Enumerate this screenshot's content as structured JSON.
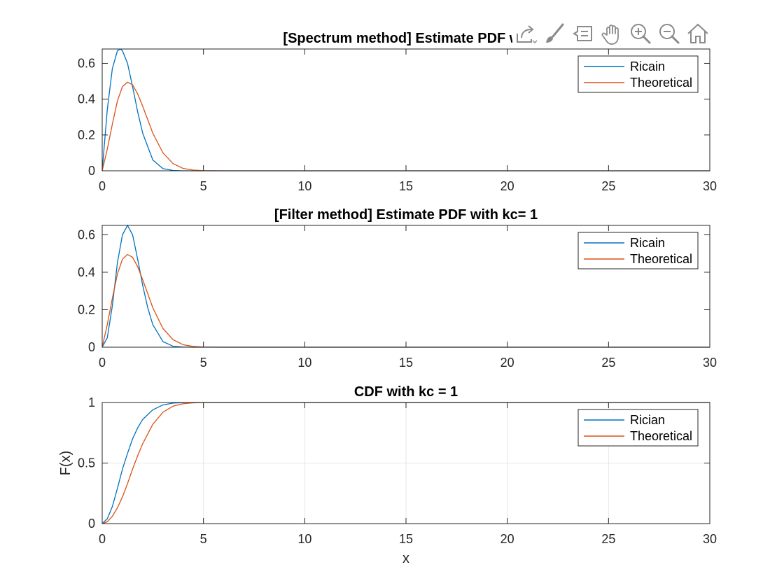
{
  "toolbar": {
    "icons": [
      "export-icon",
      "brush-icon",
      "data-tips-icon",
      "pan-icon",
      "zoom-in-icon",
      "zoom-out-icon",
      "home-icon"
    ]
  },
  "colors": {
    "series1": "#0072BD",
    "series2": "#D95319",
    "axis": "#262626",
    "grid": "#e6e6e6"
  },
  "chart_data": [
    {
      "type": "line",
      "title": "[Spectrum method] Estimate PDF wit",
      "xlabel": "",
      "ylabel": "",
      "xlim": [
        0,
        30
      ],
      "ylim": [
        0,
        0.68
      ],
      "xticks": [
        0,
        5,
        10,
        15,
        20,
        25,
        30
      ],
      "yticks": [
        0,
        0.2,
        0.4,
        0.6
      ],
      "ytick_labels": [
        "0",
        "0.2",
        "0.4",
        "0.6"
      ],
      "grid": false,
      "legend": "top-right",
      "series": [
        {
          "name": "Ricain",
          "x": [
            0,
            0.25,
            0.5,
            0.75,
            0.9,
            1.0,
            1.25,
            1.5,
            1.75,
            2.0,
            2.5,
            3.0,
            3.5,
            4.0,
            4.5,
            5.0,
            10,
            20,
            30
          ],
          "y": [
            0,
            0.34,
            0.57,
            0.67,
            0.68,
            0.67,
            0.6,
            0.47,
            0.33,
            0.21,
            0.06,
            0.012,
            0.002,
            0,
            0,
            0,
            0,
            0,
            0
          ]
        },
        {
          "name": "Theoretical",
          "x": [
            0,
            0.25,
            0.5,
            0.75,
            1.0,
            1.25,
            1.5,
            1.75,
            2.0,
            2.5,
            3.0,
            3.5,
            4.0,
            4.5,
            5.0,
            6.0,
            10,
            20,
            30
          ],
          "y": [
            0,
            0.12,
            0.26,
            0.39,
            0.47,
            0.495,
            0.48,
            0.43,
            0.36,
            0.21,
            0.1,
            0.04,
            0.013,
            0.004,
            0.001,
            0,
            0,
            0,
            0
          ]
        }
      ]
    },
    {
      "type": "line",
      "title": "[Filter method] Estimate PDF with kc= 1",
      "xlabel": "",
      "ylabel": "",
      "xlim": [
        0,
        30
      ],
      "ylim": [
        0,
        0.65
      ],
      "xticks": [
        0,
        5,
        10,
        15,
        20,
        25,
        30
      ],
      "yticks": [
        0,
        0.2,
        0.4,
        0.6
      ],
      "ytick_labels": [
        "0",
        "0.2",
        "0.4",
        "0.6"
      ],
      "grid": false,
      "legend": "top-right",
      "series": [
        {
          "name": "Ricain",
          "x": [
            0,
            0.25,
            0.5,
            0.75,
            1.0,
            1.25,
            1.5,
            1.75,
            2.0,
            2.25,
            2.5,
            3.0,
            3.5,
            4.0,
            4.5,
            5.0,
            10,
            20,
            30
          ],
          "y": [
            0,
            0.05,
            0.22,
            0.45,
            0.6,
            0.65,
            0.6,
            0.47,
            0.33,
            0.21,
            0.12,
            0.03,
            0.005,
            0.001,
            0,
            0,
            0,
            0,
            0
          ]
        },
        {
          "name": "Theoretical",
          "x": [
            0,
            0.25,
            0.5,
            0.75,
            1.0,
            1.25,
            1.5,
            1.75,
            2.0,
            2.5,
            3.0,
            3.5,
            4.0,
            4.5,
            5.0,
            6.0,
            10,
            20,
            30
          ],
          "y": [
            0,
            0.12,
            0.26,
            0.39,
            0.47,
            0.495,
            0.48,
            0.43,
            0.36,
            0.21,
            0.1,
            0.04,
            0.013,
            0.004,
            0.001,
            0,
            0,
            0,
            0
          ]
        }
      ]
    },
    {
      "type": "line",
      "title": "CDF with kc = 1",
      "xlabel": "x",
      "ylabel": "F(x)",
      "xlim": [
        0,
        30
      ],
      "ylim": [
        0,
        1
      ],
      "xticks": [
        0,
        5,
        10,
        15,
        20,
        25,
        30
      ],
      "yticks": [
        0,
        0.5,
        1
      ],
      "ytick_labels": [
        "0",
        "0.5",
        "1"
      ],
      "grid": true,
      "legend": "top-right",
      "series": [
        {
          "name": "Rician",
          "x": [
            0,
            0.25,
            0.5,
            0.75,
            1.0,
            1.25,
            1.5,
            1.75,
            2.0,
            2.5,
            3.0,
            3.5,
            4.0,
            4.5,
            5.0,
            10,
            20,
            30
          ],
          "y": [
            0,
            0.04,
            0.14,
            0.29,
            0.45,
            0.58,
            0.7,
            0.79,
            0.86,
            0.94,
            0.98,
            0.995,
            0.999,
            1,
            1,
            1,
            1,
            1
          ]
        },
        {
          "name": "Theoretical",
          "x": [
            0,
            0.25,
            0.5,
            0.75,
            1.0,
            1.25,
            1.5,
            1.75,
            2.0,
            2.5,
            3.0,
            3.5,
            4.0,
            4.5,
            5.0,
            10,
            20,
            30
          ],
          "y": [
            0,
            0.015,
            0.06,
            0.13,
            0.22,
            0.33,
            0.45,
            0.56,
            0.66,
            0.82,
            0.92,
            0.97,
            0.99,
            0.997,
            1,
            1,
            1,
            1
          ]
        }
      ]
    }
  ]
}
